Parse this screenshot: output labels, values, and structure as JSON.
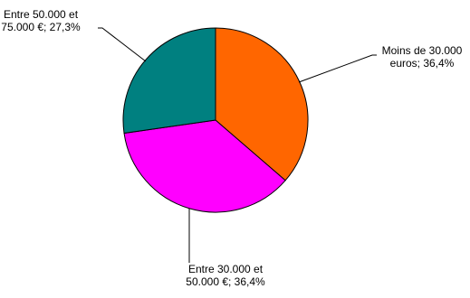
{
  "chart_data": {
    "type": "pie",
    "title": "",
    "slices": [
      {
        "label_lines": [
          "Moins de 30.000",
          "euros; 36,4%"
        ],
        "value": 36.4,
        "color": "#FF6600"
      },
      {
        "label_lines": [
          "Entre 30.000 et",
          "50.000 €; 36,4%"
        ],
        "value": 36.4,
        "color": "#FF00FF"
      },
      {
        "label_lines": [
          "Entre 50.000 et",
          "75.000 €; 27,3%"
        ],
        "value": 27.3,
        "color": "#008080"
      }
    ],
    "start_angle_deg": 0,
    "direction": "clockwise",
    "legend": "none",
    "data_labels": "outside with leader lines"
  }
}
